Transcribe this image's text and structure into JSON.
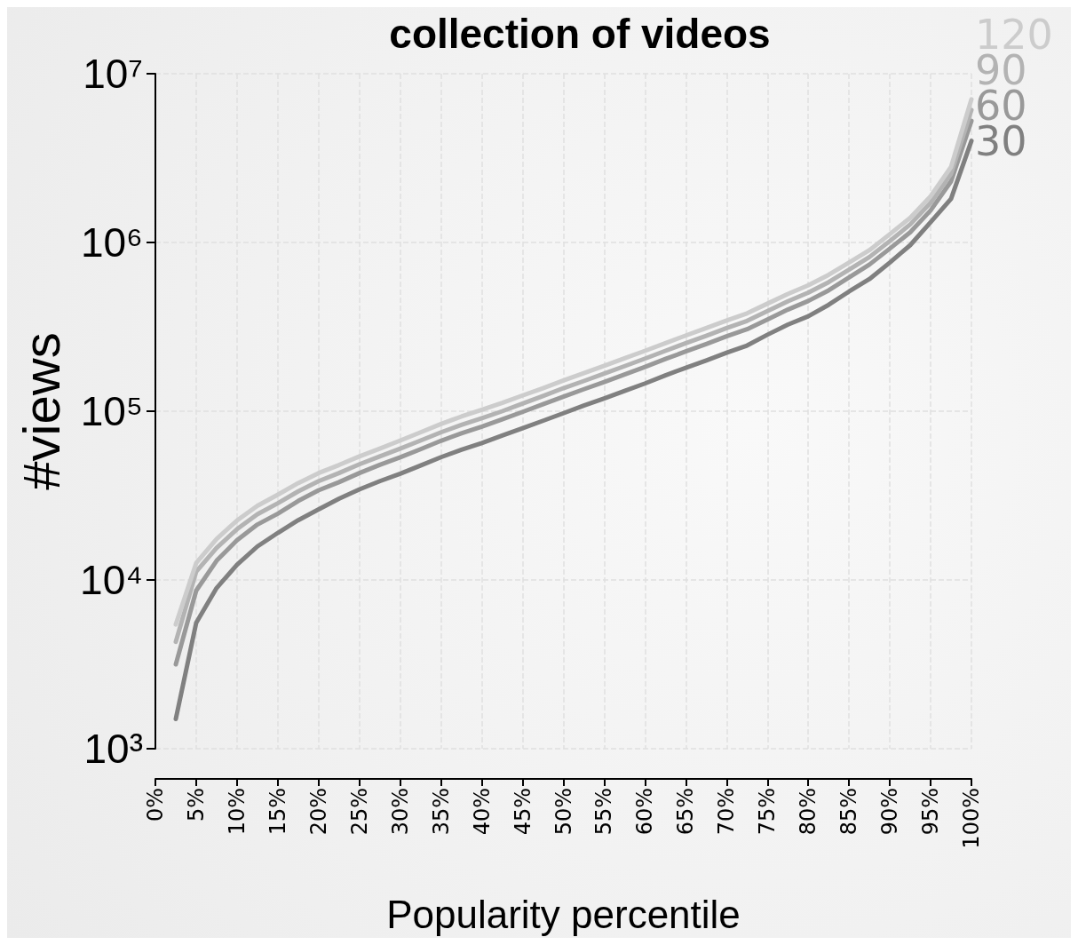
{
  "chart_data": {
    "type": "line",
    "title": "collection of videos",
    "xlabel": "Popularity percentile",
    "ylabel": "#views",
    "x": [
      2.5,
      5,
      7.5,
      10,
      12.5,
      15,
      17.5,
      20,
      22.5,
      25,
      27.5,
      30,
      32.5,
      35,
      37.5,
      40,
      42.5,
      45,
      47.5,
      50,
      52.5,
      55,
      57.5,
      60,
      62.5,
      65,
      67.5,
      70,
      72.5,
      75,
      77.5,
      80,
      82.5,
      85,
      87.5,
      90,
      92.5,
      95,
      97.5,
      100
    ],
    "series": [
      {
        "name": "30",
        "color": "#808080",
        "values": [
          1500,
          5570,
          8960,
          12300,
          15800,
          19000,
          22600,
          26200,
          30300,
          34400,
          38500,
          42600,
          47700,
          53400,
          59100,
          64800,
          71700,
          79300,
          87800,
          97300,
          108000,
          119000,
          132000,
          146000,
          163000,
          181000,
          200000,
          222000,
          245000,
          284000,
          326000,
          365000,
          427000,
          512000,
          607000,
          760000,
          964000,
          1320000,
          1815000,
          4000000
        ]
      },
      {
        "name": "60",
        "color": "#999999",
        "values": [
          3160,
          8650,
          13000,
          17200,
          21300,
          24700,
          29400,
          34000,
          38000,
          43000,
          48100,
          53300,
          59600,
          66800,
          73900,
          81000,
          89600,
          99100,
          110000,
          122000,
          135000,
          149000,
          165000,
          183000,
          204000,
          226000,
          250000,
          278000,
          306000,
          350000,
          400000,
          450000,
          520000,
          620000,
          740000,
          920000,
          1150000,
          1550000,
          2300000,
          5250000
        ]
      },
      {
        "name": "90",
        "color": "#b3b3b3",
        "values": [
          4300,
          11200,
          15500,
          20000,
          24500,
          28500,
          33500,
          38500,
          43000,
          48500,
          54000,
          60000,
          67000,
          75000,
          83000,
          91000,
          100000,
          111000,
          123000,
          137000,
          151000,
          167000,
          185000,
          205000,
          228000,
          253000,
          280000,
          311000,
          343000,
          392000,
          448000,
          504000,
          582000,
          690000,
          820000,
          1020000,
          1280000,
          1720000,
          2550000,
          6100000
        ]
      },
      {
        "name": "120",
        "color": "#cccccc",
        "values": [
          5450,
          12600,
          17500,
          22500,
          27500,
          32000,
          37500,
          43000,
          48000,
          54000,
          60000,
          67000,
          75000,
          84000,
          93000,
          102000,
          112000,
          124000,
          137000,
          152000,
          168000,
          186000,
          206000,
          228000,
          253000,
          281000,
          311000,
          345000,
          380000,
          434000,
          495000,
          557000,
          643000,
          760000,
          900000,
          1120000,
          1400000,
          1880000,
          2800000,
          7050000
        ]
      }
    ],
    "xlim": [
      0,
      100
    ],
    "xticks": [
      {
        "value": 0,
        "label": "0%"
      },
      {
        "value": 5,
        "label": "5%"
      },
      {
        "value": 10,
        "label": "10%"
      },
      {
        "value": 15,
        "label": "15%"
      },
      {
        "value": 20,
        "label": "20%"
      },
      {
        "value": 25,
        "label": "25%"
      },
      {
        "value": 30,
        "label": "30%"
      },
      {
        "value": 35,
        "label": "35%"
      },
      {
        "value": 40,
        "label": "40%"
      },
      {
        "value": 45,
        "label": "45%"
      },
      {
        "value": 50,
        "label": "50%"
      },
      {
        "value": 55,
        "label": "55%"
      },
      {
        "value": 60,
        "label": "60%"
      },
      {
        "value": 65,
        "label": "65%"
      },
      {
        "value": 70,
        "label": "70%"
      },
      {
        "value": 75,
        "label": "75%"
      },
      {
        "value": 80,
        "label": "80%"
      },
      {
        "value": 85,
        "label": "85%"
      },
      {
        "value": 90,
        "label": "90%"
      },
      {
        "value": 95,
        "label": "95%"
      },
      {
        "value": 100,
        "label": "100%"
      }
    ],
    "ylim": [
      1000,
      10000000
    ],
    "yticks": [
      {
        "value": 1000,
        "label": "10³"
      },
      {
        "value": 10000,
        "label": "10⁴"
      },
      {
        "value": 100000,
        "label": "10⁵"
      },
      {
        "value": 1000000,
        "label": "10⁶"
      },
      {
        "value": 10000000,
        "label": "10⁷"
      }
    ],
    "log": "y",
    "grid": true,
    "legend": false,
    "marker": "none",
    "line_style": "solid"
  }
}
